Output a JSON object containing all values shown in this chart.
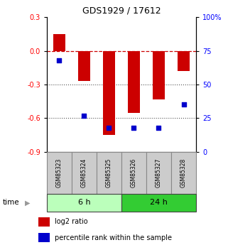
{
  "title": "GDS1929 / 17612",
  "samples": [
    "GSM85323",
    "GSM85324",
    "GSM85325",
    "GSM85326",
    "GSM85327",
    "GSM85328"
  ],
  "log2_ratio": [
    0.15,
    -0.27,
    -0.75,
    -0.55,
    -0.43,
    -0.18
  ],
  "percentile_rank": [
    68,
    27,
    18,
    18,
    18,
    35
  ],
  "ylim_left": [
    -0.9,
    0.3
  ],
  "ylim_right": [
    0,
    100
  ],
  "yticks_left": [
    0.3,
    0.0,
    -0.3,
    -0.6,
    -0.9
  ],
  "yticks_right": [
    100,
    75,
    50,
    25,
    0
  ],
  "group1_label": "6 h",
  "group2_label": "24 h",
  "bar_color": "#cc0000",
  "dot_color": "#0000cc",
  "hline_color": "#cc0000",
  "dotted_color": "#555555",
  "bg_plot": "#ffffff",
  "label_log2": "log2 ratio",
  "label_pct": "percentile rank within the sample",
  "time_label": "time",
  "group1_bg": "#bbffbb",
  "group2_bg": "#33cc33",
  "sample_box_bg": "#cccccc",
  "sample_box_edge": "#888888"
}
